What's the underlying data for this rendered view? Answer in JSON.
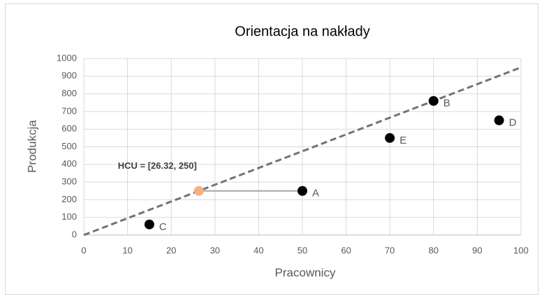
{
  "chart_data": {
    "type": "scatter",
    "title": "Orientacja na nakłady",
    "x_label": "Pracownicy",
    "y_label": "Produkcja",
    "xlim": [
      0,
      100
    ],
    "ylim": [
      0,
      1000
    ],
    "xticks": [
      0,
      10,
      20,
      30,
      40,
      50,
      60,
      70,
      80,
      90,
      100
    ],
    "yticks": [
      0,
      100,
      200,
      300,
      400,
      500,
      600,
      700,
      800,
      900,
      1000
    ],
    "grid": true,
    "series": [
      {
        "x": [
          50,
          80,
          15,
          95,
          70
        ],
        "values": [
          250,
          760,
          60,
          650,
          550
        ],
        "labels": [
          "A",
          "B",
          "C",
          "D",
          "E"
        ],
        "color": "#000000"
      },
      {
        "x": [
          26.32
        ],
        "values": [
          250
        ],
        "color": "#f4b183"
      }
    ],
    "lines": [
      {
        "x": [
          0,
          100
        ],
        "values": [
          0,
          950
        ],
        "color": "#767171",
        "dashed": true
      },
      {
        "x": [
          26.32,
          50
        ],
        "values": [
          250,
          250
        ],
        "color": "#a6a6a6",
        "dashed": false
      }
    ],
    "annotation": "HCU = [26.32, 250]"
  }
}
